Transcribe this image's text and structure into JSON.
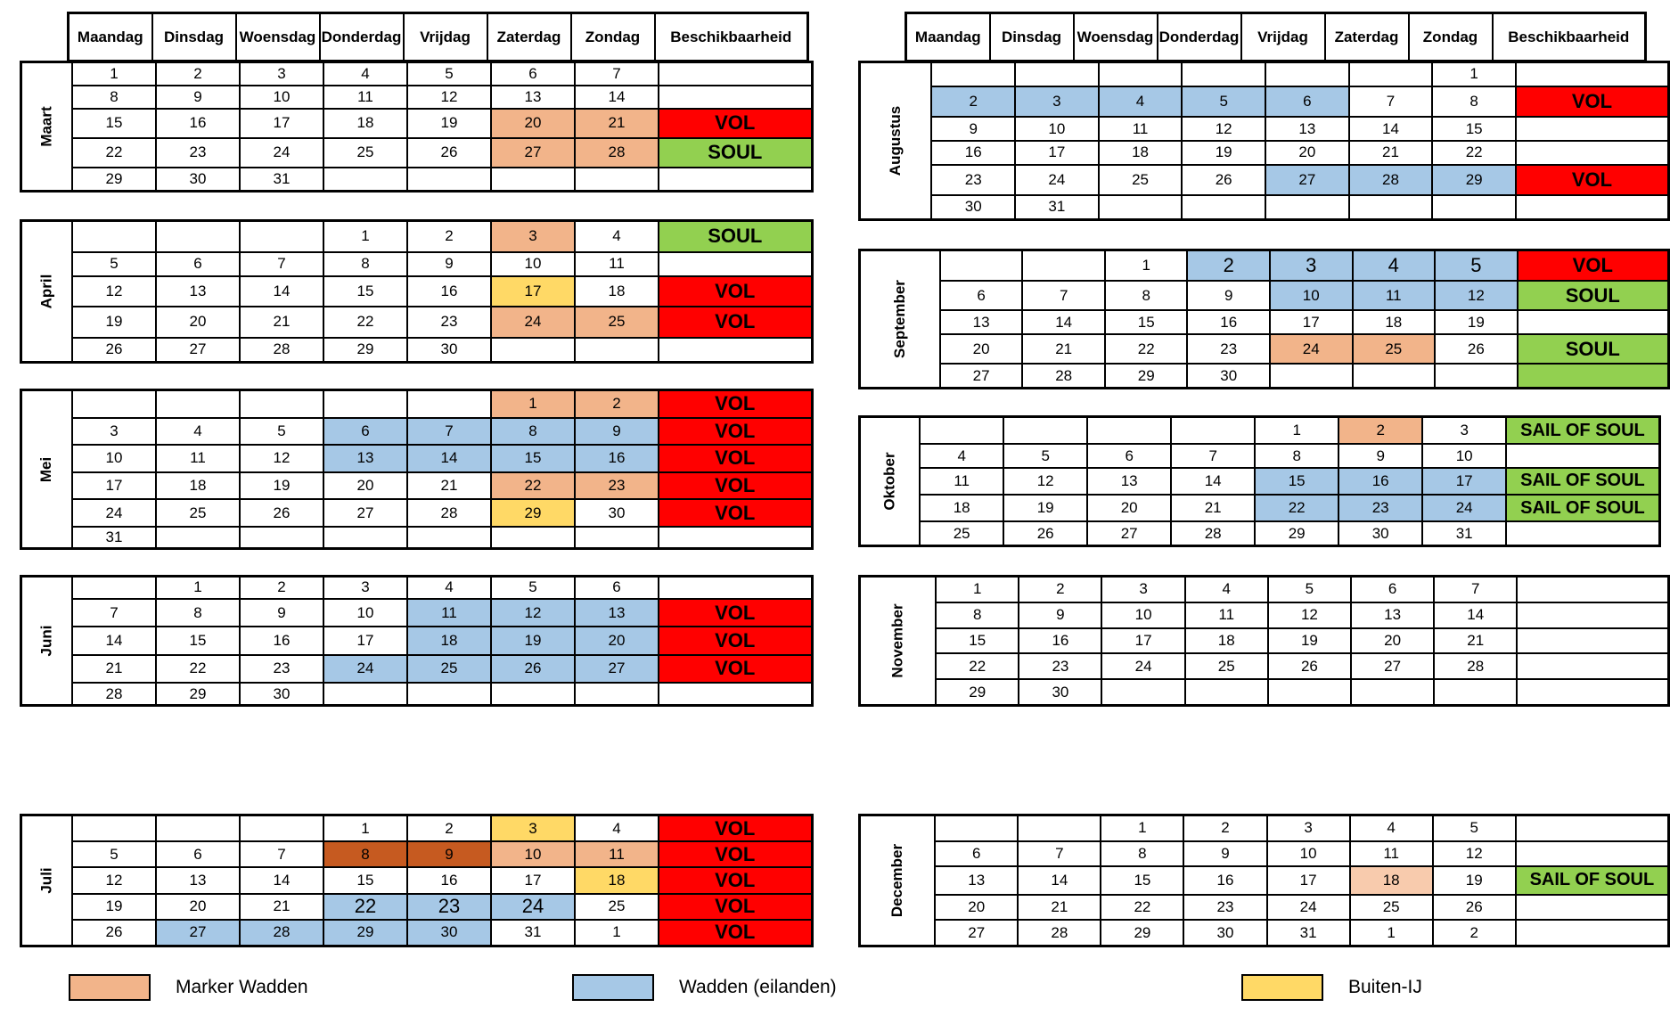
{
  "headers": [
    "Maandag",
    "Dinsdag",
    "Woensdag",
    "Donderdag",
    "Vrijdag",
    "Zaterdag",
    "Zondag",
    "Beschikbaarheid"
  ],
  "colors": {
    "o": "#F2B48A",
    "b": "#A6C8E6",
    "y": "#FFD966",
    "p": "#F8CBAD",
    "r": "#C65A20",
    "VOL": "#FF0000",
    "SOUL": "#92D050"
  },
  "months": [
    {
      "name": "Maart",
      "rows": [
        {
          "cells": [
            "1",
            "2",
            "3",
            "4",
            "5",
            "6",
            "7"
          ]
        },
        {
          "cells": [
            "8",
            "9",
            "10",
            "11",
            "12",
            "13",
            "14"
          ]
        },
        {
          "cells": [
            "15",
            "16",
            "17",
            "18",
            "19",
            "20",
            "21"
          ],
          "hl": ".....oo",
          "avail": "VOL"
        },
        {
          "cells": [
            "22",
            "23",
            "24",
            "25",
            "26",
            "27",
            "28"
          ],
          "hl": ".....oo",
          "avail": "SOUL"
        },
        {
          "cells": [
            "29",
            "30",
            "31",
            "",
            "",
            "",
            ""
          ]
        }
      ]
    },
    {
      "name": "April",
      "rows": [
        {
          "cells": [
            "",
            "",
            "",
            "1",
            "2",
            "3",
            "4"
          ],
          "hl": ".....o.",
          "avail": "SOUL"
        },
        {
          "cells": [
            "5",
            "6",
            "7",
            "8",
            "9",
            "10",
            "11"
          ]
        },
        {
          "cells": [
            "12",
            "13",
            "14",
            "15",
            "16",
            "17",
            "18"
          ],
          "hl": ".....y.",
          "avail": "VOL"
        },
        {
          "cells": [
            "19",
            "20",
            "21",
            "22",
            "23",
            "24",
            "25"
          ],
          "hl": ".....oo",
          "avail": "VOL"
        },
        {
          "cells": [
            "26",
            "27",
            "28",
            "29",
            "30",
            "",
            ""
          ]
        }
      ]
    },
    {
      "name": "Mei",
      "rows": [
        {
          "cells": [
            "",
            "",
            "",
            "",
            "",
            "1",
            "2"
          ],
          "hl": ".....oo",
          "avail": "VOL"
        },
        {
          "cells": [
            "3",
            "4",
            "5",
            "6",
            "7",
            "8",
            "9"
          ],
          "hl": "...bbbb",
          "avail": "VOL"
        },
        {
          "cells": [
            "10",
            "11",
            "12",
            "13",
            "14",
            "15",
            "16"
          ],
          "hl": "...bbbb",
          "avail": "VOL"
        },
        {
          "cells": [
            "17",
            "18",
            "19",
            "20",
            "21",
            "22",
            "23"
          ],
          "hl": ".....oo",
          "avail": "VOL"
        },
        {
          "cells": [
            "24",
            "25",
            "26",
            "27",
            "28",
            "29",
            "30"
          ],
          "hl": ".....y.",
          "avail": "VOL"
        },
        {
          "cells": [
            "31",
            "",
            "",
            "",
            "",
            "",
            ""
          ]
        }
      ]
    },
    {
      "name": "Juni",
      "rows": [
        {
          "cells": [
            "",
            "1",
            "2",
            "3",
            "4",
            "5",
            "6"
          ]
        },
        {
          "cells": [
            "7",
            "8",
            "9",
            "10",
            "11",
            "12",
            "13"
          ],
          "hl": "....bbb",
          "avail": "VOL"
        },
        {
          "cells": [
            "14",
            "15",
            "16",
            "17",
            "18",
            "19",
            "20"
          ],
          "hl": "....bbb",
          "avail": "VOL"
        },
        {
          "cells": [
            "21",
            "22",
            "23",
            "24",
            "25",
            "26",
            "27"
          ],
          "hl": "...bbbb",
          "avail": "VOL"
        },
        {
          "cells": [
            "28",
            "29",
            "30",
            "",
            "",
            "",
            ""
          ]
        }
      ]
    },
    {
      "name": "Juli",
      "rows": [
        {
          "cells": [
            "",
            "",
            "",
            "1",
            "2",
            "3",
            "4"
          ],
          "hl": ".....y.",
          "avail": "VOL"
        },
        {
          "cells": [
            "5",
            "6",
            "7",
            "8",
            "9",
            "10",
            "11"
          ],
          "hl": "...rroo",
          "avail": "VOL"
        },
        {
          "cells": [
            "12",
            "13",
            "14",
            "15",
            "16",
            "17",
            "18"
          ],
          "hl": "......y",
          "avail": "VOL"
        },
        {
          "cells": [
            "19",
            "20",
            "21",
            "22",
            "23",
            "24",
            "25"
          ],
          "hl": "...bbb.",
          "big": "...xxx.",
          "avail": "VOL"
        },
        {
          "cells": [
            "26",
            "27",
            "28",
            "29",
            "30",
            "31",
            "1"
          ],
          "hl": ".bbbb..",
          "avail": "VOL"
        }
      ]
    },
    {
      "name": "Augustus",
      "rows": [
        {
          "cells": [
            "",
            "",
            "",
            "",
            "",
            "",
            "1"
          ]
        },
        {
          "cells": [
            "2",
            "3",
            "4",
            "5",
            "6",
            "7",
            "8"
          ],
          "hl": "bbbbb..",
          "avail": "VOL"
        },
        {
          "cells": [
            "9",
            "10",
            "11",
            "12",
            "13",
            "14",
            "15"
          ]
        },
        {
          "cells": [
            "16",
            "17",
            "18",
            "19",
            "20",
            "21",
            "22"
          ]
        },
        {
          "cells": [
            "23",
            "24",
            "25",
            "26",
            "27",
            "28",
            "29"
          ],
          "hl": "....bbb",
          "avail": "VOL"
        },
        {
          "cells": [
            "30",
            "31",
            "",
            "",
            "",
            "",
            ""
          ]
        }
      ]
    },
    {
      "name": "September",
      "rows": [
        {
          "cells": [
            "",
            "",
            "1",
            "2",
            "3",
            "4",
            "5"
          ],
          "hl": "...bbbb",
          "big": "...xxxx",
          "avail": "VOL"
        },
        {
          "cells": [
            "6",
            "7",
            "8",
            "9",
            "10",
            "11",
            "12"
          ],
          "hl": "....bbb",
          "avail": "SOUL"
        },
        {
          "cells": [
            "13",
            "14",
            "15",
            "16",
            "17",
            "18",
            "19"
          ]
        },
        {
          "cells": [
            "20",
            "21",
            "22",
            "23",
            "24",
            "25",
            "26"
          ],
          "hl": "....oo.",
          "avail": "SOUL"
        },
        {
          "cells": [
            "27",
            "28",
            "29",
            "30",
            "",
            "",
            ""
          ],
          "availColor": "SOUL"
        }
      ]
    },
    {
      "name": "Oktober",
      "rows": [
        {
          "cells": [
            "",
            "",
            "",
            "",
            "1",
            "2",
            "3"
          ],
          "hl": ".....o.",
          "avail": "SAIL OF SOUL"
        },
        {
          "cells": [
            "4",
            "5",
            "6",
            "7",
            "8",
            "9",
            "10"
          ]
        },
        {
          "cells": [
            "11",
            "12",
            "13",
            "14",
            "15",
            "16",
            "17"
          ],
          "hl": "....bbb",
          "avail": "SAIL OF SOUL"
        },
        {
          "cells": [
            "18",
            "19",
            "20",
            "21",
            "22",
            "23",
            "24"
          ],
          "hl": "....bbb",
          "avail": "SAIL OF SOUL"
        },
        {
          "cells": [
            "25",
            "26",
            "27",
            "28",
            "29",
            "30",
            "31"
          ]
        }
      ]
    },
    {
      "name": "November",
      "rows": [
        {
          "cells": [
            "1",
            "2",
            "3",
            "4",
            "5",
            "6",
            "7"
          ]
        },
        {
          "cells": [
            "8",
            "9",
            "10",
            "11",
            "12",
            "13",
            "14"
          ]
        },
        {
          "cells": [
            "15",
            "16",
            "17",
            "18",
            "19",
            "20",
            "21"
          ]
        },
        {
          "cells": [
            "22",
            "23",
            "24",
            "25",
            "26",
            "27",
            "28"
          ]
        },
        {
          "cells": [
            "29",
            "30",
            "",
            "",
            "",
            "",
            ""
          ]
        }
      ]
    },
    {
      "name": "December",
      "rows": [
        {
          "cells": [
            "",
            "",
            "1",
            "2",
            "3",
            "4",
            "5"
          ]
        },
        {
          "cells": [
            "6",
            "7",
            "8",
            "9",
            "10",
            "11",
            "12"
          ]
        },
        {
          "cells": [
            "13",
            "14",
            "15",
            "16",
            "17",
            "18",
            "19"
          ],
          "hl": ".....p.",
          "avail": "SAIL OF SOUL"
        },
        {
          "cells": [
            "20",
            "21",
            "22",
            "23",
            "24",
            "25",
            "26"
          ]
        },
        {
          "cells": [
            "27",
            "28",
            "29",
            "30",
            "31",
            "1",
            "2"
          ]
        }
      ]
    }
  ],
  "legend": [
    {
      "label": "Marker Wadden",
      "color": "#F2B48A"
    },
    {
      "label": "Wadden (eilanden)",
      "color": "#A6C8E6"
    },
    {
      "label": "Buiten-IJ",
      "color": "#FFD966"
    }
  ]
}
